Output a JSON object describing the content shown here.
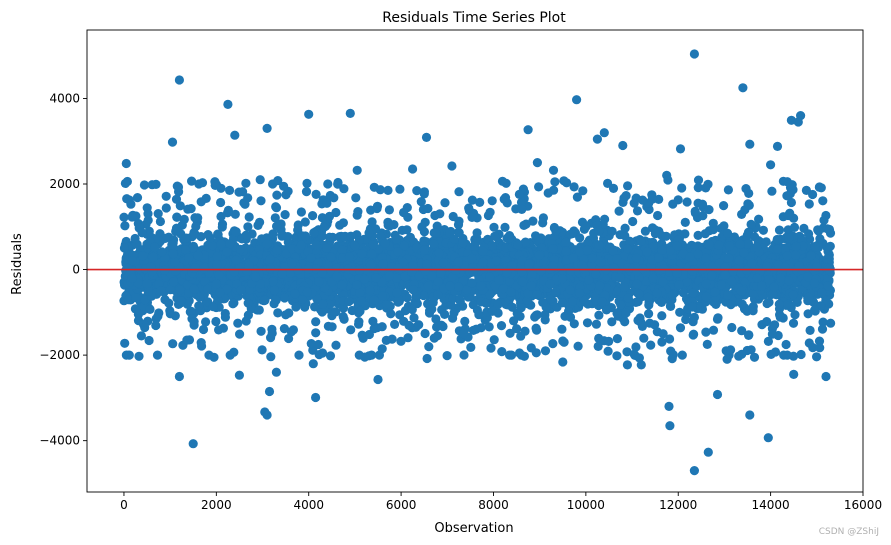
{
  "chart_data": {
    "type": "scatter",
    "title": "Residuals Time Series Plot",
    "xlabel": "Observation",
    "ylabel": "Residuals",
    "xlim": [
      -800,
      16000
    ],
    "ylim": [
      -5200,
      5600
    ],
    "xticks": [
      0,
      2000,
      4000,
      6000,
      8000,
      10000,
      12000,
      14000,
      16000
    ],
    "yticks": [
      -4000,
      -2000,
      0,
      2000,
      4000
    ],
    "xtick_labels": [
      "0",
      "2000",
      "4000",
      "6000",
      "8000",
      "10000",
      "12000",
      "14000",
      "16000"
    ],
    "ytick_labels": [
      "−4000",
      "−2000",
      "0",
      "2000",
      "4000"
    ],
    "series": [
      {
        "marker_color": "#1f77b4",
        "n_points": 15300,
        "x_range": [
          0,
          15300
        ],
        "bulk_residual_band": [
          -1500,
          1500
        ],
        "outliers": [
          {
            "x": 50,
            "y": 2480
          },
          {
            "x": 1200,
            "y": 4430
          },
          {
            "x": 1050,
            "y": 2980
          },
          {
            "x": 2250,
            "y": 3860
          },
          {
            "x": 2400,
            "y": 3140
          },
          {
            "x": 3100,
            "y": 3300
          },
          {
            "x": 4000,
            "y": 3630
          },
          {
            "x": 4900,
            "y": 3650
          },
          {
            "x": 6550,
            "y": 3090
          },
          {
            "x": 8750,
            "y": 3270
          },
          {
            "x": 9800,
            "y": 3970
          },
          {
            "x": 10400,
            "y": 3200
          },
          {
            "x": 10250,
            "y": 3050
          },
          {
            "x": 10800,
            "y": 2900
          },
          {
            "x": 12350,
            "y": 5040
          },
          {
            "x": 13400,
            "y": 4250
          },
          {
            "x": 13550,
            "y": 2930
          },
          {
            "x": 14450,
            "y": 3490
          },
          {
            "x": 14650,
            "y": 3600
          },
          {
            "x": 14600,
            "y": 3450
          },
          {
            "x": 14150,
            "y": 2880
          },
          {
            "x": 14000,
            "y": 2450
          },
          {
            "x": 12050,
            "y": 2820
          },
          {
            "x": 11750,
            "y": 2200
          },
          {
            "x": 2950,
            "y": 2100
          },
          {
            "x": 7100,
            "y": 2420
          },
          {
            "x": 8950,
            "y": 2500
          },
          {
            "x": 9300,
            "y": 2320
          },
          {
            "x": 6250,
            "y": 2350
          },
          {
            "x": 5050,
            "y": 2320
          },
          {
            "x": 1700,
            "y": 2030
          },
          {
            "x": 2100,
            "y": 1900
          },
          {
            "x": 1500,
            "y": -4070
          },
          {
            "x": 1200,
            "y": -2500
          },
          {
            "x": 2500,
            "y": -2470
          },
          {
            "x": 3050,
            "y": -3330
          },
          {
            "x": 3100,
            "y": -3400
          },
          {
            "x": 3150,
            "y": -2850
          },
          {
            "x": 3300,
            "y": -2400
          },
          {
            "x": 4150,
            "y": -2990
          },
          {
            "x": 4100,
            "y": -2200
          },
          {
            "x": 4300,
            "y": -1950
          },
          {
            "x": 5500,
            "y": -2570
          },
          {
            "x": 9500,
            "y": -2160
          },
          {
            "x": 10900,
            "y": -2230
          },
          {
            "x": 11200,
            "y": -2230
          },
          {
            "x": 11800,
            "y": -3200
          },
          {
            "x": 11820,
            "y": -3650
          },
          {
            "x": 12350,
            "y": -4700
          },
          {
            "x": 12650,
            "y": -4270
          },
          {
            "x": 12850,
            "y": -2920
          },
          {
            "x": 13550,
            "y": -3400
          },
          {
            "x": 13950,
            "y": -3930
          },
          {
            "x": 13650,
            "y": -2050
          },
          {
            "x": 14500,
            "y": -2450
          },
          {
            "x": 15200,
            "y": -2500
          },
          {
            "x": 6600,
            "y": -1800
          },
          {
            "x": 8350,
            "y": -2000
          },
          {
            "x": 1950,
            "y": -2050
          },
          {
            "x": 2300,
            "y": -2000
          }
        ]
      }
    ],
    "reference_line": {
      "y": 0,
      "color": "#d62728"
    },
    "grid": false,
    "legend": "none"
  },
  "watermark": "CSDN @ZShiJ"
}
